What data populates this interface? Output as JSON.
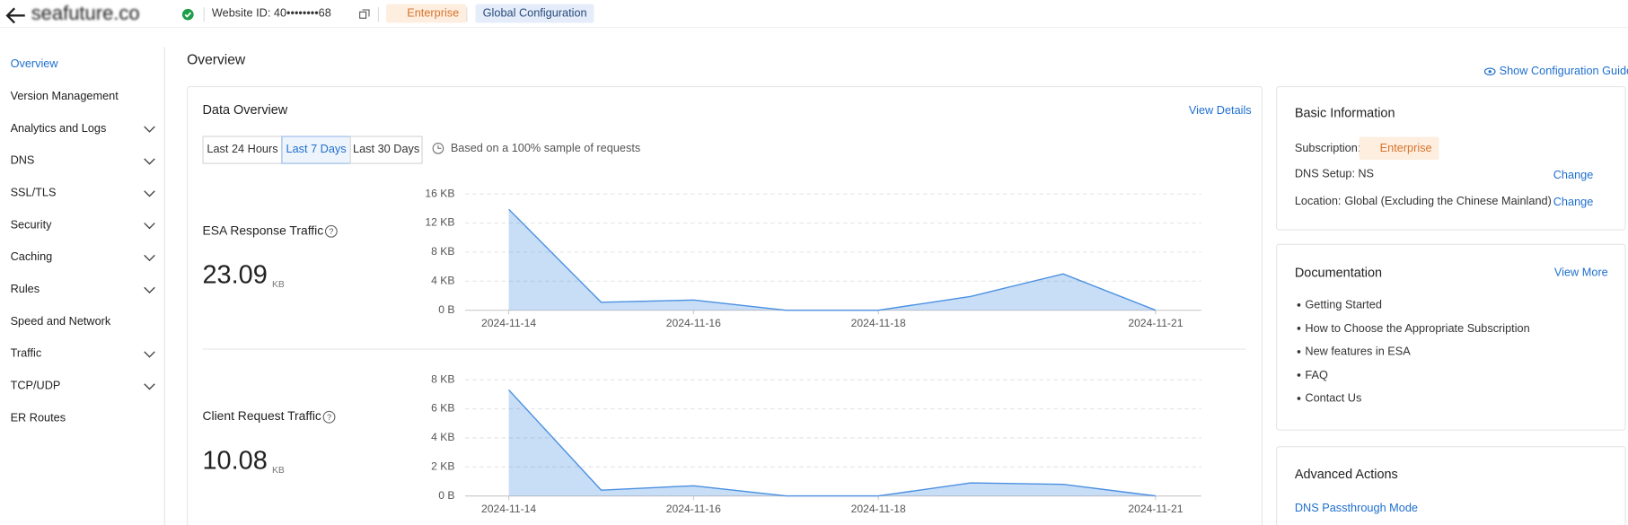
{
  "header": {
    "site": "seafuture.co",
    "website_id": "Website ID: 40••••••••68",
    "plan": "Enterprise",
    "config": "Global Configuration"
  },
  "sidebar": {
    "items": [
      {
        "label": "Overview",
        "expandable": false
      },
      {
        "label": "Version Management",
        "expandable": false
      },
      {
        "label": "Analytics and Logs",
        "expandable": true
      },
      {
        "label": "DNS",
        "expandable": true
      },
      {
        "label": "SSL/TLS",
        "expandable": true
      },
      {
        "label": "Security",
        "expandable": true
      },
      {
        "label": "Caching",
        "expandable": true
      },
      {
        "label": "Rules",
        "expandable": true
      },
      {
        "label": "Speed and Network",
        "expandable": false
      },
      {
        "label": "Traffic",
        "expandable": true
      },
      {
        "label": "TCP/UDP",
        "expandable": true
      },
      {
        "label": "ER Routes",
        "expandable": false
      }
    ]
  },
  "page_title": "Overview",
  "guide_link": "Show Configuration Guide",
  "data_overview": {
    "title": "Data Overview",
    "view_details": "View Details",
    "ranges": [
      "Last 24 Hours",
      "Last 7 Days",
      "Last 30 Days"
    ],
    "selected_range": 1,
    "sample_note": "Based on a 100% sample of requests",
    "metrics": [
      {
        "title": "ESA Response Traffic",
        "value": 23.09,
        "unit": "KB",
        "chart": {
          "type": "area",
          "color": "#4a90e2",
          "x": [
            "2024-11-14",
            "2024-11-15",
            "2024-11-16",
            "2024-11-17",
            "2024-11-18",
            "2024-11-19",
            "2024-11-20",
            "2024-11-21"
          ],
          "values": [
            13.9,
            1.1,
            1.4,
            0,
            0,
            1.9,
            5.0,
            0
          ],
          "xticks": [
            "2024-11-14",
            "2024-11-16",
            "2024-11-18",
            "2024-11-21"
          ],
          "ylim": [
            0,
            16
          ],
          "yticks": [
            {
              "value": 0,
              "label": "0 B"
            },
            {
              "value": 4,
              "label": "4 KB"
            },
            {
              "value": 8,
              "label": "8 KB"
            },
            {
              "value": 12,
              "label": "12 KB"
            },
            {
              "value": 16,
              "label": "16 KB"
            }
          ]
        }
      },
      {
        "title": "Client Request Traffic",
        "value": 10.08,
        "unit": "KB",
        "chart": {
          "type": "area",
          "color": "#4a90e2",
          "x": [
            "2024-11-14",
            "2024-11-15",
            "2024-11-16",
            "2024-11-17",
            "2024-11-18",
            "2024-11-19",
            "2024-11-20",
            "2024-11-21"
          ],
          "values": [
            7.3,
            0.4,
            0.7,
            0,
            0,
            0.9,
            0.8,
            0
          ],
          "xticks": [
            "2024-11-14",
            "2024-11-16",
            "2024-11-18",
            "2024-11-21"
          ],
          "ylim": [
            0,
            8
          ],
          "yticks": [
            {
              "value": 0,
              "label": "0 B"
            },
            {
              "value": 2,
              "label": "2 KB"
            },
            {
              "value": 4,
              "label": "4 KB"
            },
            {
              "value": 6,
              "label": "6 KB"
            },
            {
              "value": 8,
              "label": "8 KB"
            }
          ]
        }
      }
    ]
  },
  "basic_info": {
    "title": "Basic Information",
    "rows": [
      {
        "label": "Subscription:",
        "value": "Enterprise"
      },
      {
        "label": "DNS Setup:",
        "value": "NS",
        "action": "Change"
      },
      {
        "label": "Location:",
        "value": "Global (Excluding the Chinese Mainland)",
        "action": "Change"
      }
    ]
  },
  "documentation": {
    "title": "Documentation",
    "view_more": "View More",
    "links": [
      "Getting Started",
      "How to Choose the Appropriate Subscription",
      "New features in ESA",
      "FAQ",
      "Contact Us"
    ]
  },
  "advanced": {
    "title": "Advanced Actions",
    "links": [
      "DNS Passthrough Mode"
    ]
  }
}
